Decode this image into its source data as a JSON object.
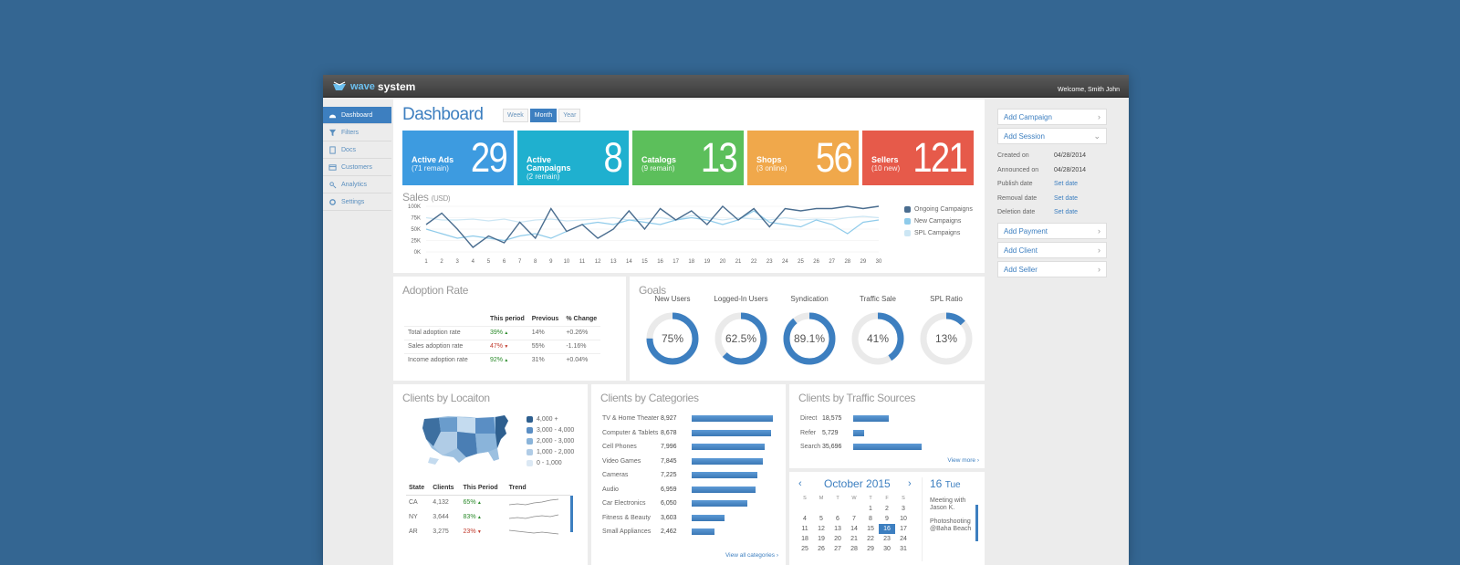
{
  "app": {
    "logo_wave": "wave",
    "logo_system": "system",
    "welcome": "Welcome, Smith John"
  },
  "sidebar": {
    "items": [
      {
        "label": "Dashboard",
        "icon": "dashboard-icon",
        "active": true
      },
      {
        "label": "Filters",
        "icon": "filter-icon",
        "active": false
      },
      {
        "label": "Docs",
        "icon": "docs-icon",
        "active": false
      },
      {
        "label": "Customers",
        "icon": "customers-icon",
        "active": false
      },
      {
        "label": "Analytics",
        "icon": "analytics-icon",
        "active": false
      },
      {
        "label": "Settings",
        "icon": "settings-icon",
        "active": false
      }
    ]
  },
  "dashboard": {
    "title": "Dashboard",
    "periods": [
      "Week",
      "Month",
      "Year"
    ],
    "active_period": "Month"
  },
  "kpis": [
    {
      "label": "Active Ads",
      "sub": "(71 remain)",
      "value": "29",
      "color": "#3d9be0"
    },
    {
      "label": "Active Campaigns",
      "sub": "(2 remain)",
      "value": "8",
      "color": "#1fb0cf"
    },
    {
      "label": "Catalogs",
      "sub": "(9 remain)",
      "value": "13",
      "color": "#5cbf5b"
    },
    {
      "label": "Shops",
      "sub": "(3 online)",
      "value": "56",
      "color": "#f0a84b"
    },
    {
      "label": "Sellers",
      "sub": "(10 new)",
      "value": "121",
      "color": "#e65a4a"
    }
  ],
  "sales": {
    "title": "Sales",
    "unit": "(USD)",
    "y_ticks": [
      "100K",
      "75K",
      "50K",
      "25K",
      "0K"
    ],
    "x": [
      1,
      2,
      3,
      4,
      5,
      6,
      7,
      8,
      9,
      10,
      11,
      12,
      13,
      14,
      15,
      16,
      17,
      18,
      19,
      20,
      21,
      22,
      23,
      24,
      25,
      26,
      27,
      28,
      29,
      30
    ],
    "x_ticks": [
      "1",
      "2",
      "3",
      "4",
      "5",
      "6",
      "7",
      "8",
      "9",
      "10",
      "11",
      "12",
      "13",
      "14",
      "15",
      "16",
      "17",
      "18",
      "19",
      "20",
      "21",
      "22",
      "23",
      "24",
      "25",
      "26",
      "27",
      "28",
      "29",
      "30"
    ],
    "series": [
      {
        "name": "Ongoing Campaigns",
        "color": "#4a6d8f",
        "values": [
          60,
          85,
          50,
          10,
          35,
          20,
          65,
          30,
          95,
          45,
          60,
          30,
          50,
          90,
          50,
          95,
          70,
          90,
          60,
          100,
          70,
          95,
          55,
          95,
          90,
          95,
          95,
          100,
          95,
          100
        ]
      },
      {
        "name": "New Campaigns",
        "color": "#8fcbea",
        "values": [
          50,
          40,
          30,
          35,
          30,
          25,
          35,
          40,
          30,
          45,
          60,
          65,
          60,
          70,
          65,
          60,
          70,
          75,
          70,
          60,
          70,
          90,
          65,
          60,
          55,
          70,
          60,
          40,
          65,
          70
        ]
      },
      {
        "name": "SPL Campaigns",
        "color": "#cce6f4",
        "values": [
          75,
          70,
          70,
          72,
          68,
          72,
          65,
          70,
          72,
          68,
          70,
          72,
          75,
          70,
          72,
          75,
          70,
          80,
          75,
          70,
          75,
          72,
          70,
          75,
          70,
          72,
          70,
          75,
          78,
          75
        ]
      }
    ],
    "ylim": [
      0,
      100
    ]
  },
  "adoption": {
    "title": "Adoption Rate",
    "headers": [
      "",
      "This period",
      "Previous",
      "% Change"
    ],
    "rows": [
      {
        "name": "Total adoption rate",
        "period": "39%",
        "trend": "up",
        "previous": "14%",
        "change": "+0.26%"
      },
      {
        "name": "Sales adoption rate",
        "period": "47%",
        "trend": "down",
        "previous": "55%",
        "change": "-1.16%"
      },
      {
        "name": "Income adoption rate",
        "period": "92%",
        "trend": "up",
        "previous": "31%",
        "change": "+0.04%"
      }
    ]
  },
  "goals": {
    "title": "Goals",
    "items": [
      {
        "label": "New Users",
        "pct": "75%",
        "value": 75
      },
      {
        "label": "Logged-In Users",
        "pct": "62.5%",
        "value": 62.5
      },
      {
        "label": "Syndication",
        "pct": "89.1%",
        "value": 89.1
      },
      {
        "label": "Traffic Sale",
        "pct": "41%",
        "value": 41
      },
      {
        "label": "SPL Ratio",
        "pct": "13%",
        "value": 13
      }
    ]
  },
  "location": {
    "title": "Clients by Locaiton",
    "legend": [
      "4,000 +",
      "3,000 - 4,000",
      "2,000 - 3,000",
      "1,000 - 2,000",
      "0 - 1,000"
    ],
    "headers": [
      "State",
      "Clients",
      "This Period",
      "Trend"
    ],
    "rows": [
      {
        "state": "CA",
        "clients": "4,132",
        "period": "65%",
        "trend": "up"
      },
      {
        "state": "NY",
        "clients": "3,644",
        "period": "83%",
        "trend": "up"
      },
      {
        "state": "AR",
        "clients": "3,275",
        "period": "23%",
        "trend": "down"
      }
    ]
  },
  "categories": {
    "title": "Clients by Categories",
    "link": "View all categories",
    "items": [
      {
        "name": "TV & Home Theater",
        "value": "8,927",
        "n": 8927
      },
      {
        "name": "Computer & Tablets",
        "value": "8,678",
        "n": 8678
      },
      {
        "name": "Cell Phones",
        "value": "7,996",
        "n": 7996
      },
      {
        "name": "Video Games",
        "value": "7,845",
        "n": 7845
      },
      {
        "name": "Cameras",
        "value": "7,225",
        "n": 7225
      },
      {
        "name": "Audio",
        "value": "6,959",
        "n": 6959
      },
      {
        "name": "Car Electronics",
        "value": "6,050",
        "n": 6050
      },
      {
        "name": "Fitness & Beauty",
        "value": "3,603",
        "n": 3603
      },
      {
        "name": "Small Appliances",
        "value": "2,462",
        "n": 2462
      }
    ]
  },
  "traffic": {
    "title": "Clients by Traffic Sources",
    "link": "View more",
    "items": [
      {
        "name": "Direct",
        "value": "18,575",
        "n": 18575
      },
      {
        "name": "Refer",
        "value": "5,729",
        "n": 5729
      },
      {
        "name": "Search",
        "value": "35,696",
        "n": 35696
      }
    ]
  },
  "calendar": {
    "month": "October 2015",
    "weekdays": [
      "S",
      "M",
      "T",
      "W",
      "T",
      "F",
      "S"
    ],
    "days": [
      "",
      "",
      "",
      "",
      "1",
      "2",
      "3",
      "4",
      "5",
      "6",
      "7",
      "8",
      "9",
      "10",
      "11",
      "12",
      "13",
      "14",
      "15",
      "16",
      "17",
      "18",
      "19",
      "20",
      "21",
      "22",
      "23",
      "24",
      "25",
      "26",
      "27",
      "28",
      "29",
      "30",
      "31"
    ],
    "today": "16",
    "day_num": "16",
    "day_name": "Tue",
    "events": [
      "Meeting with Jason K.",
      "Photoshooting @Baha Beach"
    ]
  },
  "right": {
    "add_campaign": "Add Campaign",
    "add_session": "Add Session",
    "fields": [
      {
        "k": "Created on",
        "v": "04/28/2014",
        "link": false
      },
      {
        "k": "Announced on",
        "v": "04/28/2014",
        "link": false
      },
      {
        "k": "Publish date",
        "v": "Set date",
        "link": true
      },
      {
        "k": "Removal date",
        "v": "Set date",
        "link": true
      },
      {
        "k": "Deletion date",
        "v": "Set date",
        "link": true
      }
    ],
    "add_payment": "Add Payment",
    "add_client": "Add Client",
    "add_seller": "Add Seller"
  }
}
